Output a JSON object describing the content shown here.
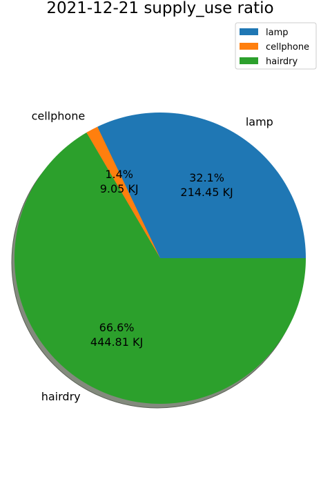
{
  "chart_data": {
    "type": "pie",
    "title": "2021-12-21 supply_use ratio",
    "categories": [
      "lamp",
      "cellphone",
      "hairdry"
    ],
    "values": [
      214.45,
      9.05,
      444.81
    ],
    "value_labels": [
      "214.45 KJ",
      "9.05 KJ",
      "444.81 KJ"
    ],
    "percent_labels": [
      "32.1%",
      "1.4%",
      "66.6%"
    ],
    "colors": [
      "#1f77b4",
      "#ff7f0e",
      "#2ca02c"
    ],
    "shadow": true,
    "legend": {
      "position": "top-right",
      "entries": [
        "lamp",
        "cellphone",
        "hairdry"
      ]
    }
  }
}
